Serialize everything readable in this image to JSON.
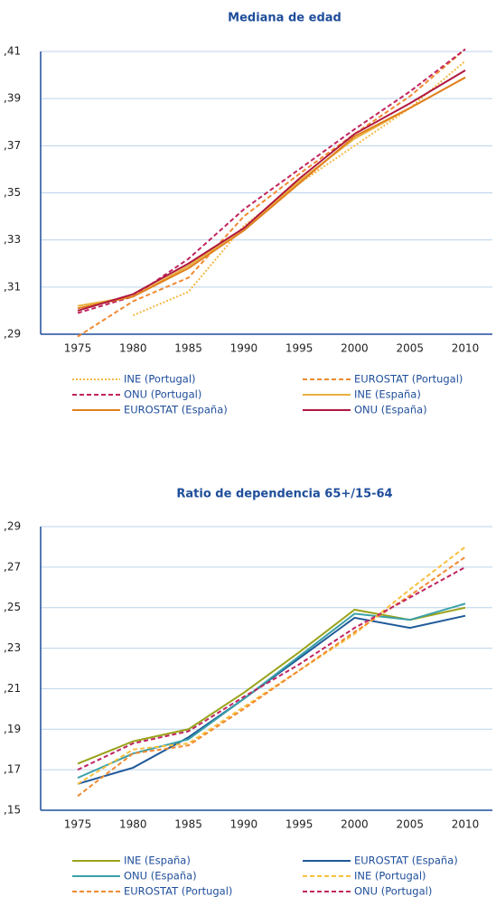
{
  "chart_data": [
    {
      "type": "line",
      "title": "Mediana de edad",
      "categories": [
        "1975",
        "1980",
        "1985",
        "1990",
        "1995",
        "2000",
        "2005",
        "2010"
      ],
      "ylim": [
        0.29,
        0.41
      ],
      "yticks": [
        {
          "value": 0.29,
          "label": ",29"
        },
        {
          "value": 0.31,
          "label": ",31"
        },
        {
          "value": 0.33,
          "label": ",33"
        },
        {
          "value": 0.35,
          "label": ",35"
        },
        {
          "value": 0.37,
          "label": ",37"
        },
        {
          "value": 0.39,
          "label": ",39"
        },
        {
          "value": 0.41,
          "label": ",41"
        }
      ],
      "grid": true,
      "series": [
        {
          "name": "INE (Portugal)",
          "color": "#f5b843",
          "style": "dotted",
          "values": [
            null,
            0.298,
            0.308,
            0.336,
            0.354,
            0.37,
            0.386,
            0.406
          ]
        },
        {
          "name": "EUROSTAT (Portugal)",
          "color": "#f08a30",
          "style": "dashed",
          "values": [
            0.289,
            0.304,
            0.314,
            0.34,
            0.358,
            0.375,
            0.391,
            0.411
          ]
        },
        {
          "name": "ONU (Portugal)",
          "color": "#c0245f",
          "style": "dashed",
          "values": [
            0.299,
            0.306,
            0.322,
            0.343,
            0.36,
            0.377,
            0.393,
            0.411
          ]
        },
        {
          "name": "INE (España)",
          "color": "#e8b040",
          "style": "solid",
          "values": [
            0.302,
            0.306,
            0.319,
            0.335,
            0.355,
            0.373,
            0.386,
            0.399
          ]
        },
        {
          "name": "EUROSTAT (España)",
          "color": "#e0801e",
          "style": "solid",
          "values": [
            0.301,
            0.306,
            0.318,
            0.334,
            0.354,
            0.374,
            0.386,
            0.399
          ]
        },
        {
          "name": "ONU (España)",
          "color": "#b0183f",
          "style": "solid",
          "values": [
            0.3,
            0.307,
            0.32,
            0.335,
            0.356,
            0.375,
            0.388,
            0.402
          ]
        }
      ]
    },
    {
      "type": "line",
      "title": "Ratio de dependencia 65+/15-64",
      "categories": [
        "1975",
        "1980",
        "1985",
        "1990",
        "1995",
        "2000",
        "2005",
        "2010"
      ],
      "ylim": [
        0.15,
        0.29
      ],
      "yticks": [
        {
          "value": 0.15,
          "label": ",15"
        },
        {
          "value": 0.17,
          "label": ",17"
        },
        {
          "value": 0.19,
          "label": ",19"
        },
        {
          "value": 0.21,
          "label": ",21"
        },
        {
          "value": 0.23,
          "label": ",23"
        },
        {
          "value": 0.25,
          "label": ",25"
        },
        {
          "value": 0.27,
          "label": ",27"
        },
        {
          "value": 0.29,
          "label": ",29"
        }
      ],
      "grid": true,
      "series": [
        {
          "name": "INE (España)",
          "color": "#9aa31a",
          "style": "solid",
          "values": [
            0.173,
            0.184,
            0.19,
            0.208,
            0.228,
            0.249,
            0.244,
            0.25
          ]
        },
        {
          "name": "EUROSTAT (España)",
          "color": "#1f5a99",
          "style": "solid",
          "values": [
            0.163,
            0.171,
            0.186,
            0.205,
            0.225,
            0.245,
            0.24,
            0.246
          ]
        },
        {
          "name": "ONU (España)",
          "color": "#3aa0a8",
          "style": "solid",
          "values": [
            0.166,
            0.178,
            0.185,
            0.205,
            0.226,
            0.247,
            0.244,
            0.252
          ]
        },
        {
          "name": "INE (Portugal)",
          "color": "#f7c040",
          "style": "dashed",
          "values": [
            0.163,
            0.18,
            0.183,
            0.201,
            0.219,
            0.237,
            0.259,
            0.28
          ]
        },
        {
          "name": "EUROSTAT (Portugal)",
          "color": "#f08a30",
          "style": "dashed",
          "values": [
            0.157,
            0.178,
            0.182,
            0.2,
            0.219,
            0.238,
            0.256,
            0.275
          ]
        },
        {
          "name": "ONU (Portugal)",
          "color": "#c0245f",
          "style": "dashed",
          "values": [
            0.17,
            0.183,
            0.189,
            0.206,
            0.222,
            0.24,
            0.255,
            0.27
          ]
        }
      ]
    }
  ]
}
